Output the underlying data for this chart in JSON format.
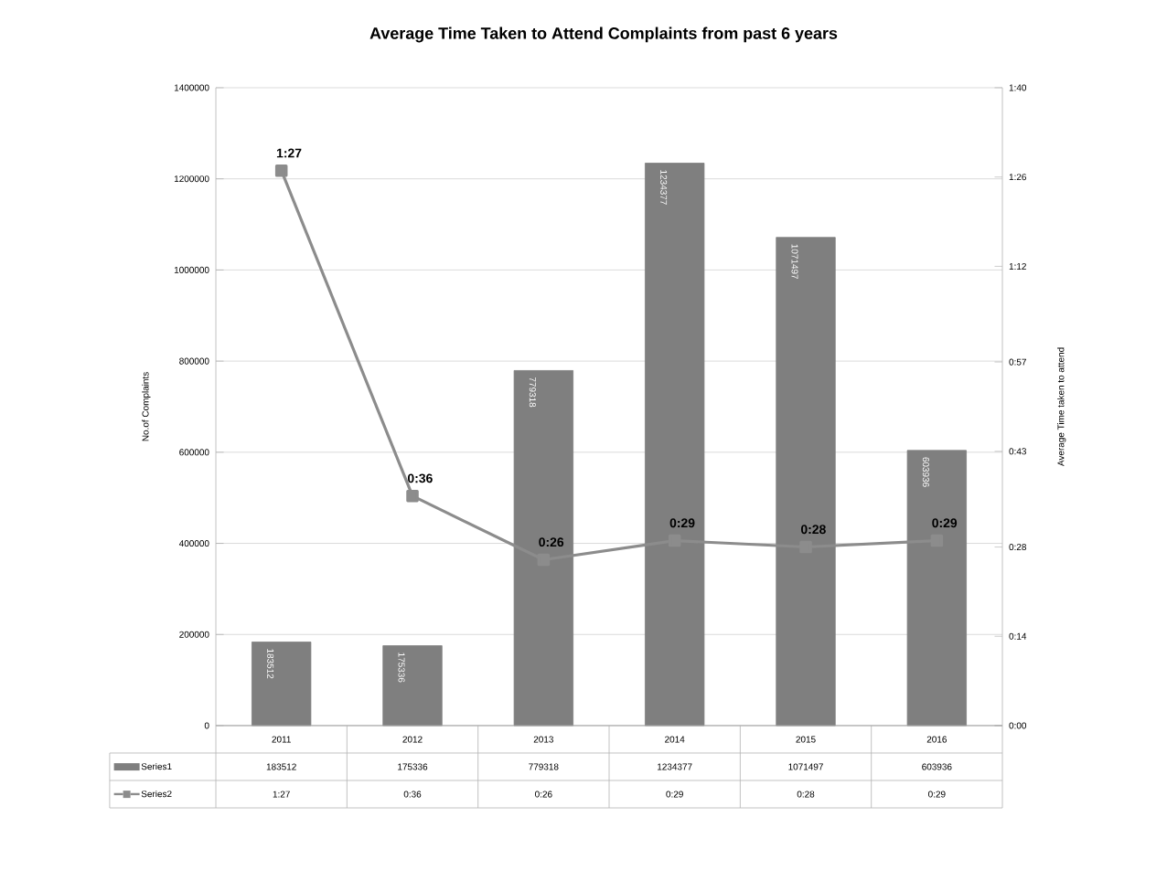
{
  "chart_data": {
    "type": "bar",
    "title": "Average Time Taken to Attend Complaints from past 6 years",
    "ylabel": "No.of Complaints",
    "y2label": "Average Time taken to attend",
    "categories": [
      "2011",
      "2012",
      "2013",
      "2014",
      "2015",
      "2016"
    ],
    "series": [
      {
        "name": "Series1",
        "color": "#7f7f7f",
        "values": [
          183512,
          175336,
          779318,
          1234377,
          1071497,
          603936
        ],
        "value_labels": [
          "183512",
          "175336",
          "779318",
          "1234377",
          "1071497",
          "603936"
        ]
      },
      {
        "name": "Series2",
        "type": "line",
        "axis": "y2",
        "color": "#8c8c8c",
        "marker": "square",
        "values": [
          87,
          36,
          26,
          29,
          28,
          29
        ],
        "value_labels": [
          "1:27",
          "0:36",
          "0:26",
          "0:29",
          "0:28",
          "0:29"
        ]
      }
    ],
    "ylim": [
      0,
      1400000
    ],
    "yticks": [
      0,
      200000,
      400000,
      600000,
      800000,
      1000000,
      1200000,
      1400000
    ],
    "y2lim": [
      0,
      100
    ],
    "y2ticks": [
      {
        "value": 0,
        "label": "0:00"
      },
      {
        "value": 14,
        "label": "0:14"
      },
      {
        "value": 28,
        "label": "0:28"
      },
      {
        "value": 43,
        "label": "0:43"
      },
      {
        "value": 57,
        "label": "0:57"
      },
      {
        "value": 72,
        "label": "1:12"
      },
      {
        "value": 86,
        "label": "1:26"
      },
      {
        "value": 100,
        "label": "1:40"
      }
    ],
    "grid": "y",
    "legend": "bottom"
  }
}
